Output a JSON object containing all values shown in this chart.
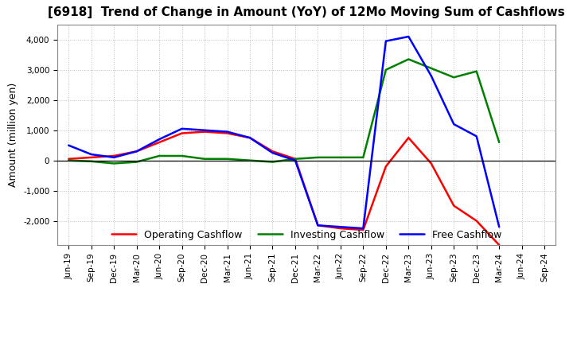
{
  "title": "[6918]  Trend of Change in Amount (YoY) of 12Mo Moving Sum of Cashflows",
  "ylabel": "Amount (million yen)",
  "x_labels": [
    "Jun-19",
    "Sep-19",
    "Dec-19",
    "Mar-20",
    "Jun-20",
    "Sep-20",
    "Dec-20",
    "Mar-21",
    "Jun-21",
    "Sep-21",
    "Dec-21",
    "Mar-22",
    "Jun-22",
    "Sep-22",
    "Dec-22",
    "Mar-23",
    "Jun-23",
    "Sep-23",
    "Dec-23",
    "Mar-24",
    "Jun-24",
    "Sep-24"
  ],
  "operating": [
    50,
    100,
    150,
    300,
    600,
    900,
    950,
    900,
    750,
    300,
    50,
    -2150,
    -2250,
    -2300,
    -200,
    750,
    -100,
    -1500,
    -2000,
    -2800,
    null,
    null
  ],
  "investing": [
    0,
    -30,
    -100,
    -50,
    150,
    150,
    50,
    50,
    0,
    -50,
    50,
    100,
    100,
    100,
    3000,
    3350,
    3050,
    2750,
    2950,
    600,
    null,
    null
  ],
  "free": [
    500,
    200,
    100,
    300,
    700,
    1050,
    1000,
    950,
    750,
    250,
    0,
    -2150,
    -2200,
    -2250,
    3950,
    4100,
    2800,
    1200,
    800,
    -2200,
    null,
    null
  ],
  "operating_color": "#ff0000",
  "investing_color": "#008000",
  "free_color": "#0000ff",
  "ylim": [
    -2800,
    4500
  ],
  "yticks": [
    -2000,
    -1000,
    0,
    1000,
    2000,
    3000,
    4000
  ],
  "bg_color": "#ffffff",
  "grid_color": "#bbbbbb",
  "line_width": 1.8,
  "title_fontsize": 11,
  "legend_fontsize": 9,
  "tick_fontsize": 7.5
}
